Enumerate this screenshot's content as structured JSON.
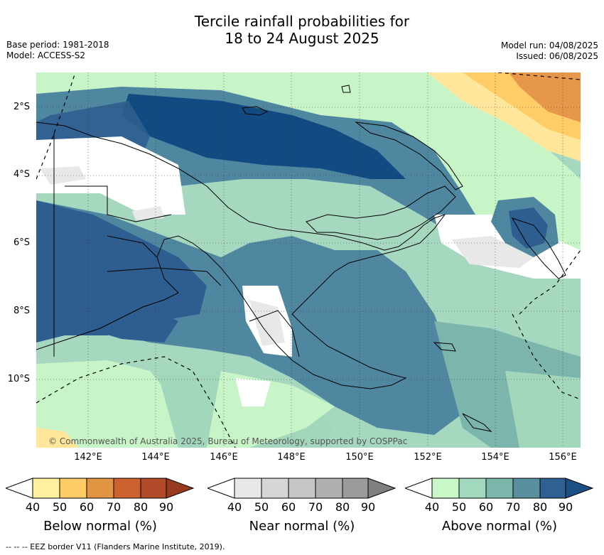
{
  "title": {
    "line1": "Tercile rainfall probabilities for",
    "line2": "18 to 24 August 2025"
  },
  "meta": {
    "base_period": "Base period: 1981-2018",
    "model": "Model: ACCESS-S2",
    "model_run": "Model run: 04/08/2025",
    "issued": "Issued: 06/08/2025"
  },
  "map": {
    "lat_labels": [
      "2°S",
      "4°S",
      "6°S",
      "8°S",
      "10°S"
    ],
    "lon_labels": [
      "142°E",
      "144°E",
      "146°E",
      "148°E",
      "150°E",
      "152°E",
      "154°E",
      "156°E"
    ],
    "copyright": "© Commonwealth of Australia 2025, Bureau of Meteorology, supported by COSPPac",
    "colors": {
      "ocean_base": "#a6d8c0",
      "above_50": "#c8f5c8",
      "above_60": "#a3d7bc",
      "above_70": "#7bb5ac",
      "above_80": "#4f87a0",
      "above_90": "#2e5e8f",
      "above_max": "#124a82",
      "near_40": "#e8e8e8",
      "below_50": "#ffe69a",
      "below_60": "#ffcc66",
      "below_70": "#e6974a"
    }
  },
  "colorbars": [
    {
      "title": "Below normal (%)",
      "ticks": [
        "40",
        "50",
        "60",
        "70",
        "80",
        "90"
      ],
      "colors": [
        "#ffffff",
        "#fff0a0",
        "#fdcc66",
        "#e19442",
        "#cc6230",
        "#b04a28",
        "#983a1e"
      ]
    },
    {
      "title": "Near normal (%)",
      "ticks": [
        "40",
        "50",
        "60",
        "70",
        "80",
        "90"
      ],
      "colors": [
        "#ffffff",
        "#e8e8e8",
        "#d6d6d6",
        "#c6c6c6",
        "#b0b0b0",
        "#9b9b9b",
        "#808080"
      ]
    },
    {
      "title": "Above normal (%)",
      "ticks": [
        "40",
        "50",
        "60",
        "70",
        "80",
        "90"
      ],
      "colors": [
        "#ffffff",
        "#c8f8c8",
        "#a2d8bd",
        "#7db6ab",
        "#5a8fa0",
        "#305f92",
        "#1b4f86"
      ]
    }
  ],
  "footnote": "-- -- -- EEZ border V11 (Flanders Marine Institute, 2019)."
}
